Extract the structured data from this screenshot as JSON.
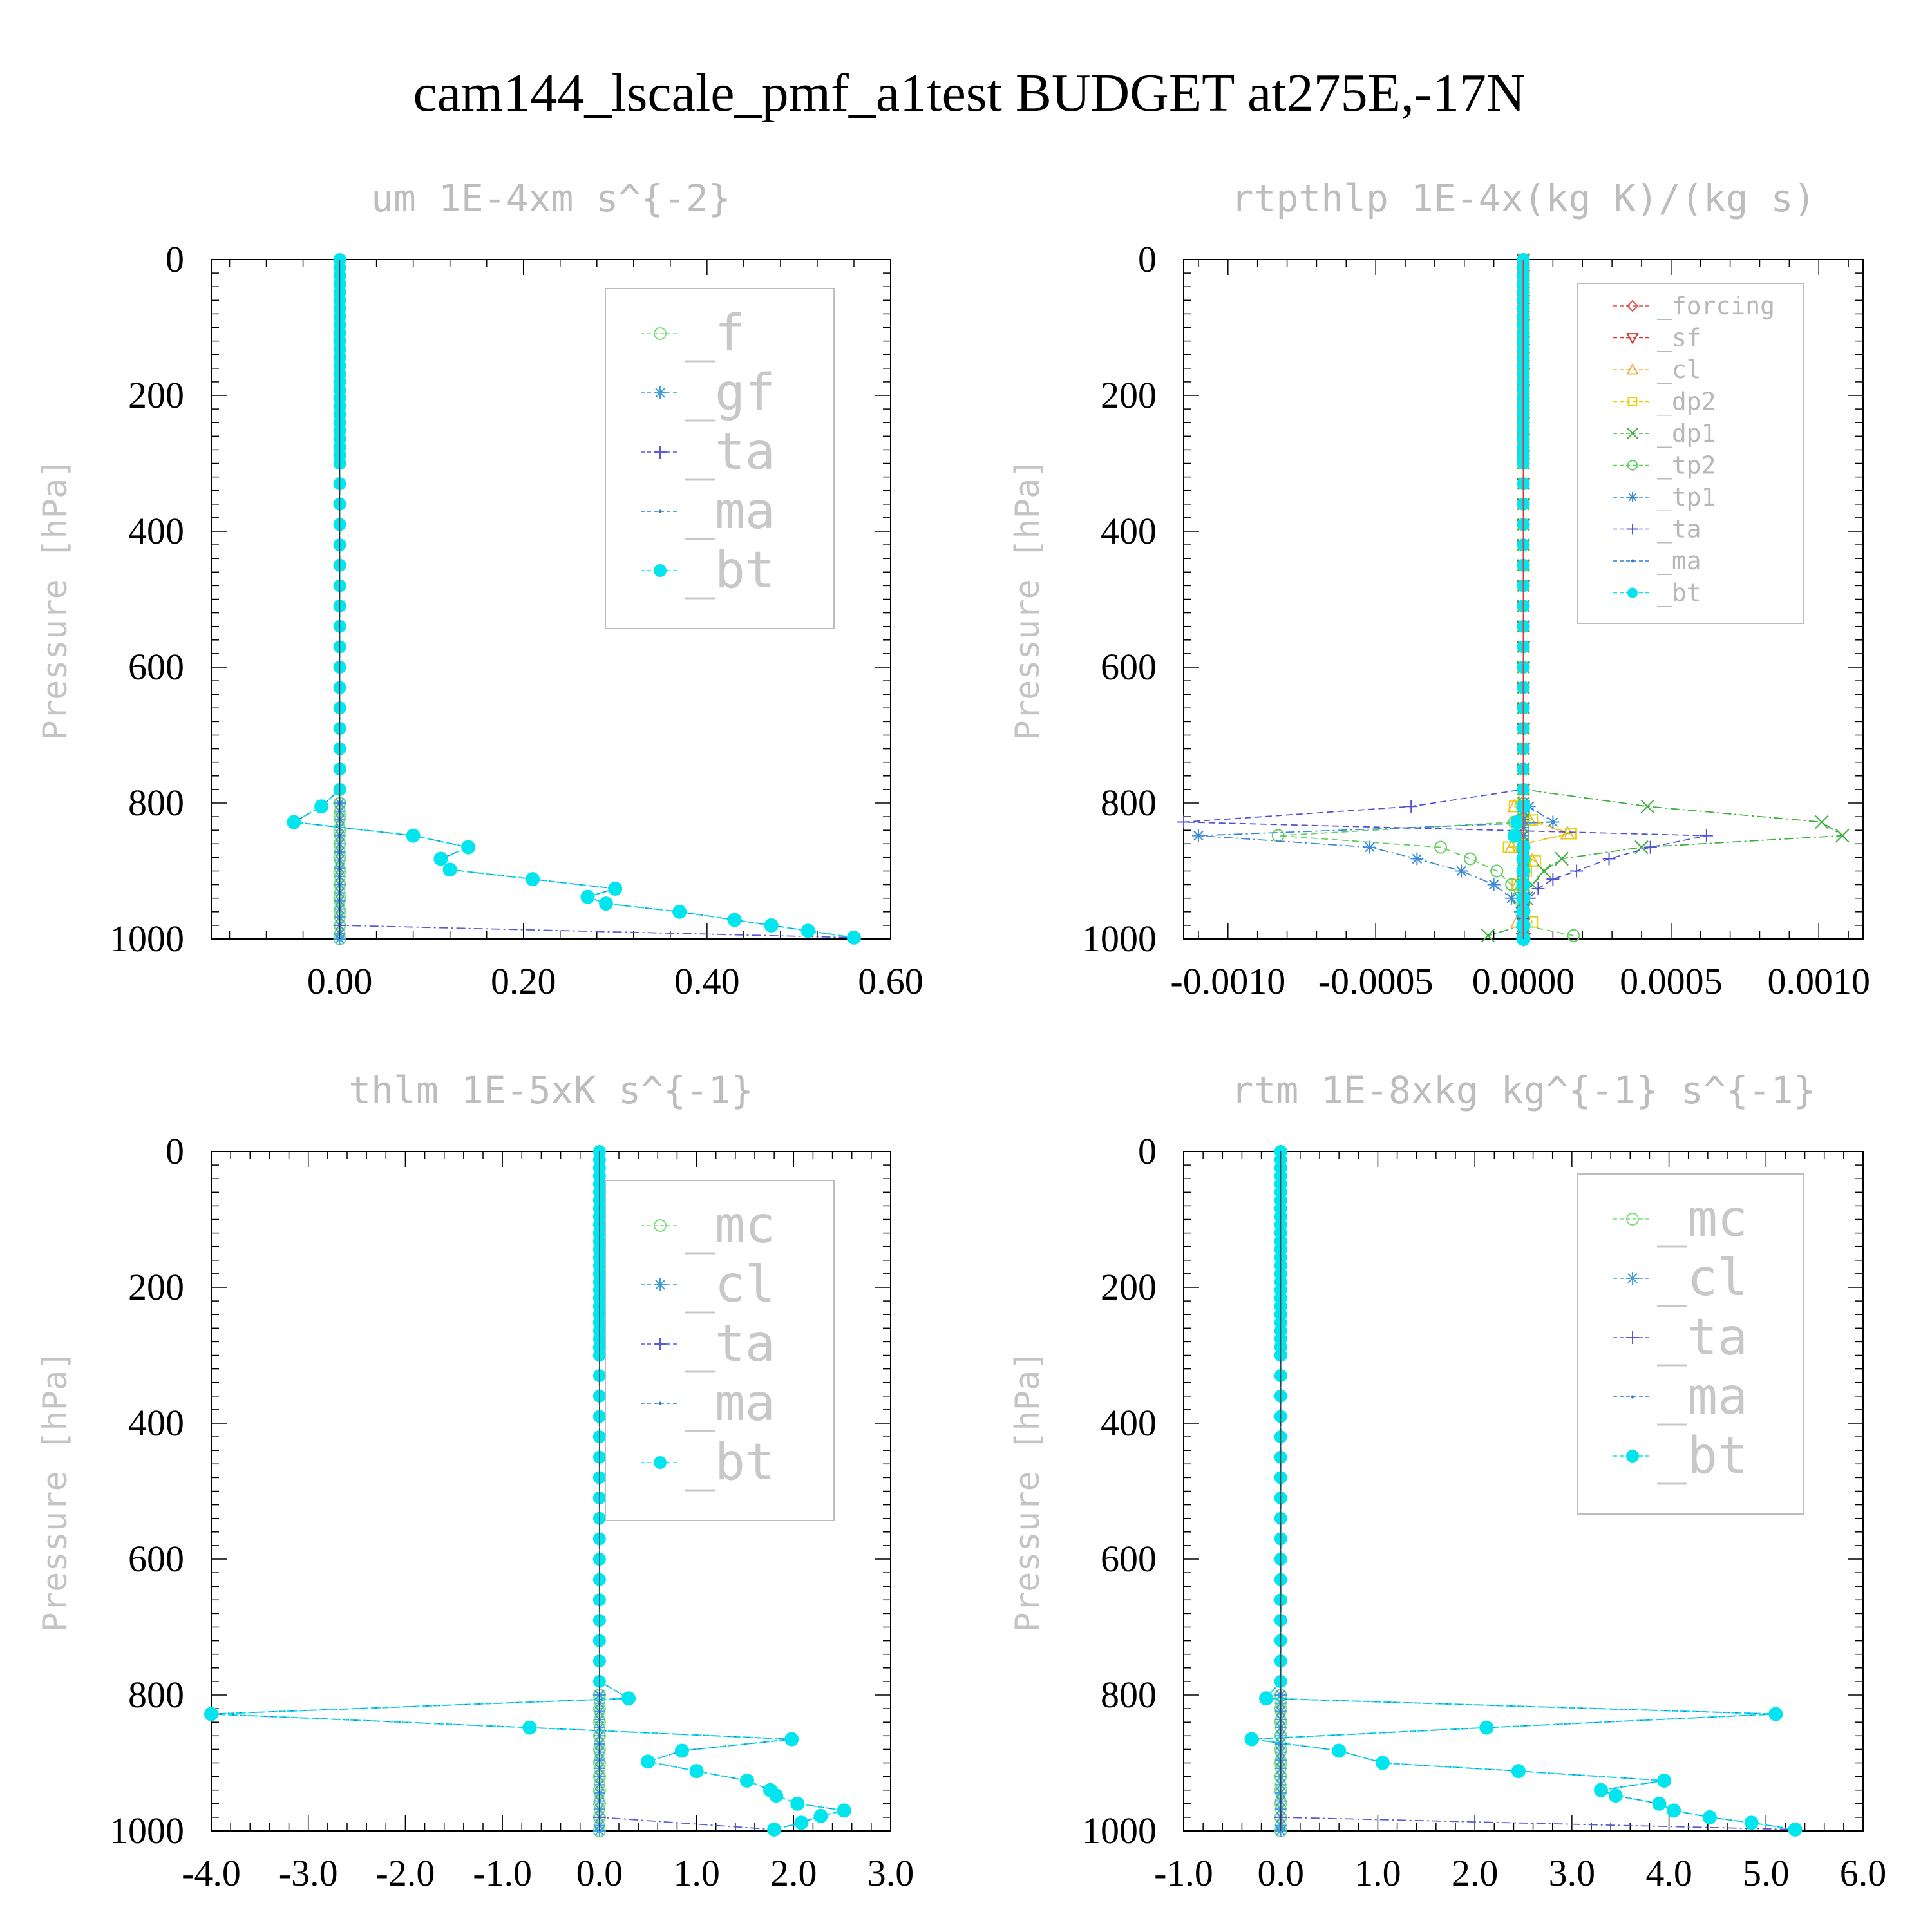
{
  "title": "cam144_lscale_pmf_a1test  BUDGET at275E,-17N",
  "chart_data": [
    {
      "type": "line",
      "title": "um  1E-4xm s^{-2}",
      "ylabel": "Pressure [hPa]",
      "xlim": [
        -0.14,
        0.6
      ],
      "ylim": [
        1000,
        0
      ],
      "xticks": [
        0.0,
        0.2,
        0.4,
        0.6
      ],
      "xtick_labels": [
        "0.00",
        "0.20",
        "0.40",
        "0.60"
      ],
      "yticks": [
        0,
        200,
        400,
        600,
        800,
        1000
      ],
      "ytick_labels": [
        "0",
        "200",
        "400",
        "600",
        "800",
        "1000"
      ],
      "legend_size": "big",
      "series": [
        {
          "name": "_f",
          "color": "#7fe07f",
          "marker": "circle-open",
          "y": [
            0,
            800,
            820,
            840,
            860,
            880,
            900,
            920,
            940,
            960,
            980,
            1000
          ],
          "x": [
            0,
            0,
            0,
            0,
            0,
            0,
            0,
            0,
            0,
            0,
            0,
            0
          ]
        },
        {
          "name": "_gf",
          "color": "#3d9de0",
          "marker": "asterisk",
          "y": [
            0,
            800,
            1000
          ],
          "x": [
            0,
            0,
            0
          ]
        },
        {
          "name": "_ta",
          "color": "#5a5ad8",
          "marker": "plus",
          "y": [
            0,
            980,
            998
          ],
          "x": [
            0,
            0,
            0.56
          ]
        },
        {
          "name": "_ma",
          "color": "#2a7fd0",
          "marker": "dot",
          "y": [
            0,
            780,
            805,
            828,
            848,
            865,
            882,
            898,
            912,
            926,
            938,
            948,
            960,
            972,
            980,
            988,
            998
          ],
          "x": [
            0,
            0,
            -0.02,
            -0.05,
            0.08,
            0.14,
            0.11,
            0.12,
            0.21,
            0.3,
            0.27,
            0.29,
            0.37,
            0.43,
            0.47,
            0.51,
            0.56
          ]
        },
        {
          "name": "_bt",
          "color": "#00e5ee",
          "marker": "filled-circle",
          "y": [
            0,
            780,
            805,
            828,
            848,
            865,
            882,
            898,
            912,
            926,
            938,
            948,
            960,
            972,
            980,
            988,
            998
          ],
          "x": [
            0,
            0,
            -0.02,
            -0.05,
            0.08,
            0.14,
            0.11,
            0.12,
            0.21,
            0.3,
            0.27,
            0.29,
            0.37,
            0.43,
            0.47,
            0.51,
            0.56
          ]
        }
      ]
    },
    {
      "type": "line",
      "title": "rtpthlp  1E-4x(kg K)/(kg s)",
      "ylabel": "Pressure [hPa]",
      "xlim": [
        -0.00115,
        0.00115
      ],
      "ylim": [
        1000,
        0
      ],
      "xticks": [
        -0.001,
        -0.0005,
        0.0,
        0.0005,
        0.001
      ],
      "xtick_labels": [
        "-0.0010",
        "-0.0005",
        "0.0000",
        "0.0005",
        "0.0010"
      ],
      "yticks": [
        0,
        200,
        400,
        600,
        800,
        1000
      ],
      "ytick_labels": [
        "0",
        "200",
        "400",
        "600",
        "800",
        "1000"
      ],
      "legend_size": "small",
      "series": [
        {
          "name": "_forcing",
          "color": "#e05050",
          "marker": "diamond",
          "y": [
            0,
            1000
          ],
          "x": [
            0,
            0
          ]
        },
        {
          "name": "_sf",
          "color": "#e03030",
          "marker": "triangle-down",
          "y": [
            0,
            1000
          ],
          "x": [
            0,
            0
          ]
        },
        {
          "name": "_cl",
          "color": "#f0b040",
          "marker": "triangle-up",
          "y": [
            0,
            780,
            805,
            825,
            845,
            865,
            885,
            900,
            920,
            950,
            975,
            990
          ],
          "x": [
            0,
            0,
            -3e-05,
            2e-05,
            0.00015,
            -4e-05,
            3e-05,
            0,
            -2e-05,
            0,
            -2e-05,
            0
          ]
        },
        {
          "name": "_dp2",
          "color": "#e8d000",
          "marker": "square",
          "y": [
            0,
            780,
            805,
            825,
            845,
            865,
            885,
            900,
            920,
            950,
            975,
            995
          ],
          "x": [
            0,
            0,
            -3e-05,
            3e-05,
            0.00016,
            -5e-05,
            4e-05,
            1e-05,
            -2e-05,
            0,
            3e-05,
            0
          ]
        },
        {
          "name": "_dp1",
          "color": "#3cb03c",
          "marker": "x",
          "y": [
            0,
            780,
            805,
            828,
            848,
            865,
            882,
            900,
            920,
            940,
            960,
            980,
            995
          ],
          "x": [
            0,
            0,
            0.00042,
            0.00101,
            0.00108,
            0.0004,
            0.00013,
            7e-05,
            3e-05,
            1e-05,
            0,
            0,
            -0.00012
          ]
        },
        {
          "name": "_tp2",
          "color": "#60d060",
          "marker": "circle-open",
          "y": [
            0,
            780,
            805,
            828,
            848,
            865,
            882,
            900,
            920,
            940,
            960,
            980,
            995
          ],
          "x": [
            0,
            0,
            0,
            -3e-05,
            -0.00083,
            -0.00028,
            -0.00018,
            -9e-05,
            -4e-05,
            -2e-05,
            0,
            0,
            0.00017
          ]
        },
        {
          "name": "_tp1",
          "color": "#3d8ad8",
          "marker": "asterisk",
          "y": [
            0,
            780,
            805,
            828,
            848,
            865,
            882,
            900,
            920,
            940,
            960,
            980,
            995
          ],
          "x": [
            0,
            0,
            2e-05,
            0.0001,
            -0.0011,
            -0.00052,
            -0.00036,
            -0.00021,
            -0.0001,
            -4e-05,
            -1e-05,
            0,
            0
          ]
        },
        {
          "name": "_ta",
          "color": "#5050d8",
          "marker": "plus",
          "y": [
            0,
            780,
            805,
            828,
            848,
            865,
            882,
            900,
            912,
            926,
            940,
            955,
            970,
            985,
            998
          ],
          "x": [
            0,
            0,
            -0.00038,
            -0.00115,
            0.00062,
            0.00043,
            0.00029,
            0.00018,
            0.0001,
            5e-05,
            2e-05,
            0,
            0,
            0,
            0
          ]
        },
        {
          "name": "_ma",
          "color": "#2a7fd0",
          "marker": "dot",
          "y": [
            0,
            1000
          ],
          "x": [
            0,
            0
          ]
        },
        {
          "name": "_bt",
          "color": "#00e5ee",
          "marker": "filled-circle",
          "y": [
            0,
            780,
            805,
            828,
            848,
            865,
            882,
            900,
            920,
            940,
            960,
            980,
            1000
          ],
          "x": [
            0,
            0,
            0,
            -2e-05,
            -3e-05,
            0,
            0,
            0,
            0,
            0,
            0,
            0,
            0
          ]
        }
      ]
    },
    {
      "type": "line",
      "title": "thlm  1E-5xK s^{-1}",
      "ylabel": "Pressure [hPa]",
      "xlim": [
        -4.0,
        3.0
      ],
      "ylim": [
        1000,
        0
      ],
      "xticks": [
        -4,
        -3,
        -2,
        -1,
        0,
        1,
        2,
        3
      ],
      "xtick_labels": [
        "-4.0",
        "-3.0",
        "-2.0",
        "-1.0",
        "0.0",
        "1.0",
        "2.0",
        "3.0"
      ],
      "yticks": [
        0,
        200,
        400,
        600,
        800,
        1000
      ],
      "ytick_labels": [
        "0",
        "200",
        "400",
        "600",
        "800",
        "1000"
      ],
      "legend_size": "big",
      "series": [
        {
          "name": "_mc",
          "color": "#7fe07f",
          "marker": "circle-open",
          "y": [
            0,
            800,
            820,
            840,
            860,
            880,
            900,
            920,
            940,
            960,
            980,
            1000
          ],
          "x": [
            0,
            0,
            0,
            0,
            0,
            0,
            0,
            0,
            0,
            0,
            0,
            0
          ]
        },
        {
          "name": "_cl",
          "color": "#3d9de0",
          "marker": "asterisk",
          "y": [
            0,
            800,
            1000
          ],
          "x": [
            0,
            0,
            0
          ]
        },
        {
          "name": "_ta",
          "color": "#5a5ad8",
          "marker": "plus",
          "y": [
            0,
            980,
            998
          ],
          "x": [
            0,
            0,
            1.8
          ]
        },
        {
          "name": "_ma",
          "color": "#2a7fd0",
          "marker": "dot",
          "y": [
            0,
            780,
            805,
            828,
            848,
            865,
            882,
            898,
            912,
            926,
            940,
            948,
            960,
            970,
            978,
            988,
            998
          ],
          "x": [
            0,
            0,
            0.3,
            -4.0,
            -0.72,
            1.98,
            0.85,
            0.5,
            1.0,
            1.52,
            1.76,
            1.82,
            2.04,
            2.52,
            2.28,
            2.08,
            1.8
          ]
        },
        {
          "name": "_bt",
          "color": "#00e5ee",
          "marker": "filled-circle",
          "y": [
            0,
            780,
            805,
            828,
            848,
            865,
            882,
            898,
            912,
            926,
            940,
            948,
            960,
            970,
            978,
            988,
            998
          ],
          "x": [
            0,
            0,
            0.3,
            -4.0,
            -0.72,
            1.98,
            0.85,
            0.5,
            1.0,
            1.52,
            1.76,
            1.82,
            2.04,
            2.52,
            2.28,
            2.08,
            1.8
          ]
        }
      ]
    },
    {
      "type": "line",
      "title": "rtm  1E-8xkg kg^{-1} s^{-1}",
      "ylabel": "Pressure [hPa]",
      "xlim": [
        -1.0,
        6.0
      ],
      "ylim": [
        1000,
        0
      ],
      "xticks": [
        -1,
        0,
        1,
        2,
        3,
        4,
        5,
        6
      ],
      "xtick_labels": [
        "-1.0",
        "0.0",
        "1.0",
        "2.0",
        "3.0",
        "4.0",
        "5.0",
        "6.0"
      ],
      "yticks": [
        0,
        200,
        400,
        600,
        800,
        1000
      ],
      "ytick_labels": [
        "0",
        "200",
        "400",
        "600",
        "800",
        "1000"
      ],
      "legend_size": "big",
      "series": [
        {
          "name": "_mc",
          "color": "#7fe07f",
          "marker": "circle-open",
          "y": [
            0,
            800,
            820,
            840,
            860,
            880,
            900,
            920,
            940,
            960,
            980,
            1000
          ],
          "x": [
            0,
            0,
            0,
            0,
            0,
            0,
            0,
            0,
            0,
            0,
            0,
            0
          ]
        },
        {
          "name": "_cl",
          "color": "#3d9de0",
          "marker": "asterisk",
          "y": [
            0,
            800,
            1000
          ],
          "x": [
            0,
            0,
            0
          ]
        },
        {
          "name": "_ta",
          "color": "#5a5ad8",
          "marker": "plus",
          "y": [
            0,
            980,
            998
          ],
          "x": [
            0,
            0,
            5.3
          ]
        },
        {
          "name": "_ma",
          "color": "#2a7fd0",
          "marker": "dot",
          "y": [
            0,
            780,
            805,
            828,
            848,
            865,
            882,
            900,
            912,
            926,
            940,
            948,
            960,
            970,
            980,
            988,
            998
          ],
          "x": [
            0,
            0,
            -0.15,
            5.1,
            2.12,
            -0.3,
            0.6,
            1.05,
            2.45,
            3.95,
            3.3,
            3.45,
            3.9,
            4.05,
            4.42,
            4.85,
            5.3
          ]
        },
        {
          "name": "_bt",
          "color": "#00e5ee",
          "marker": "filled-circle",
          "y": [
            0,
            780,
            805,
            828,
            848,
            865,
            882,
            900,
            912,
            926,
            940,
            948,
            960,
            970,
            980,
            988,
            998
          ],
          "x": [
            0,
            0,
            -0.15,
            5.1,
            2.12,
            -0.3,
            0.6,
            1.05,
            2.45,
            3.95,
            3.3,
            3.45,
            3.9,
            4.05,
            4.42,
            4.85,
            5.3
          ]
        }
      ]
    }
  ]
}
